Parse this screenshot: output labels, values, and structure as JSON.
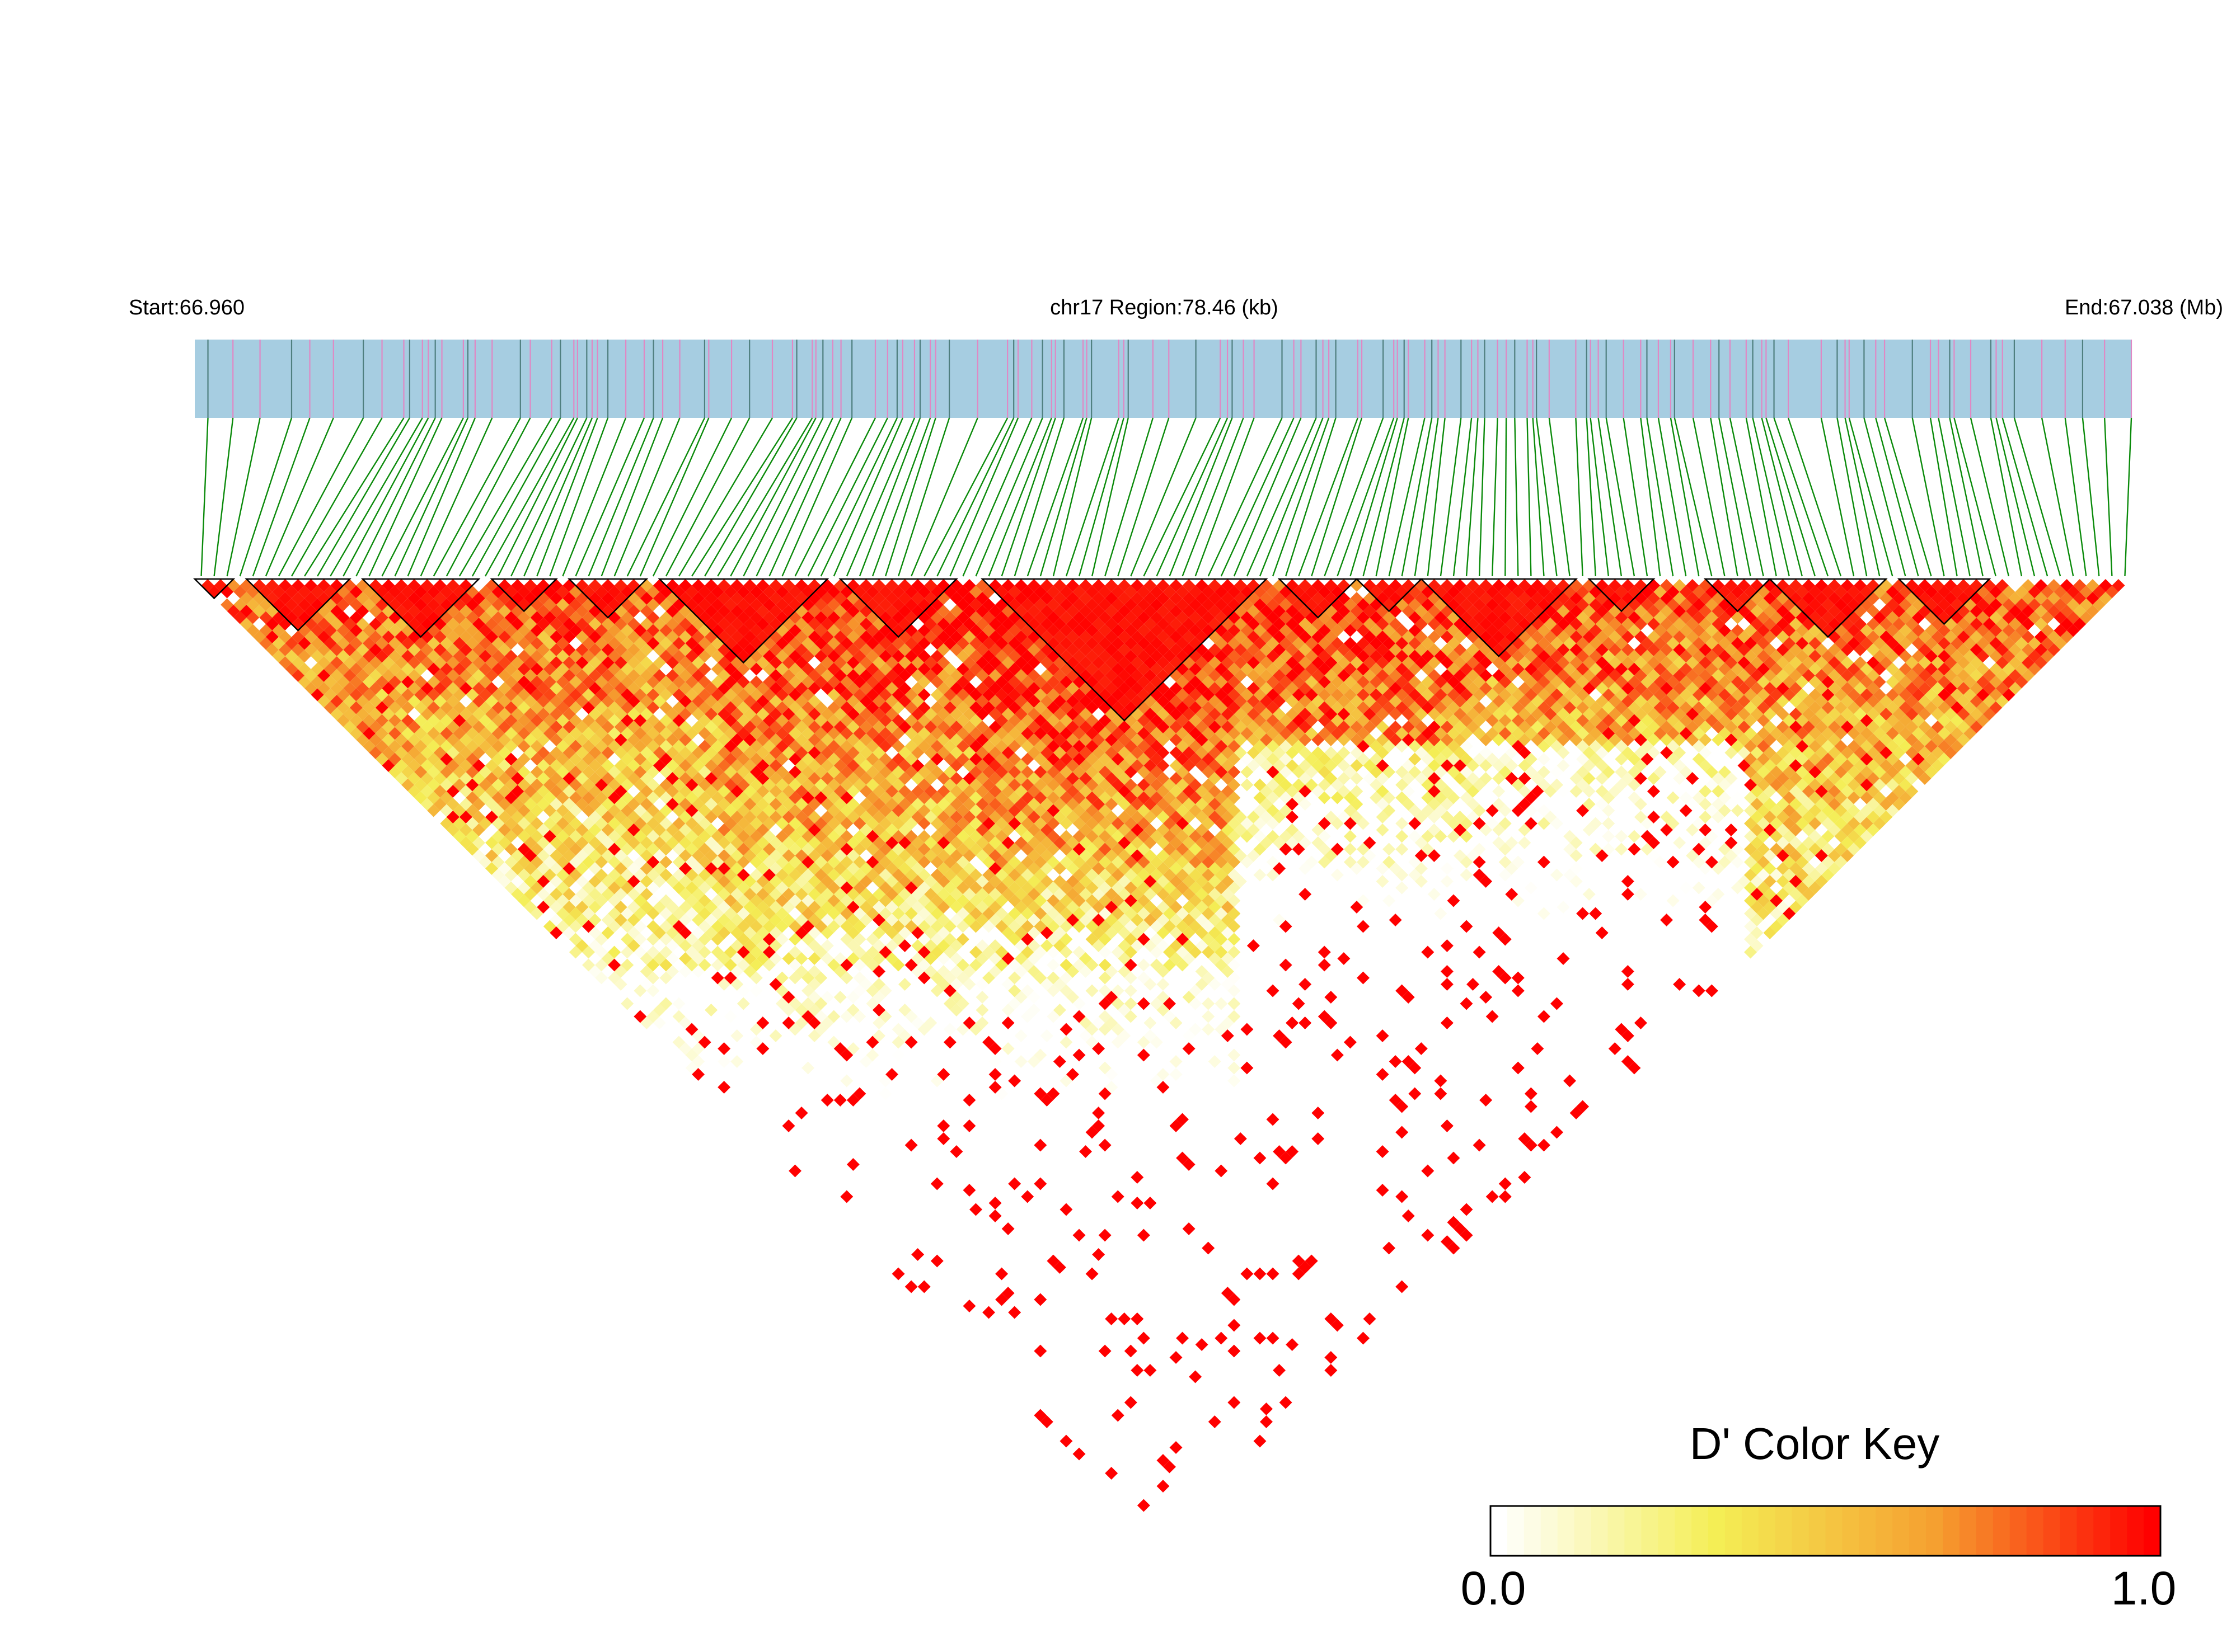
{
  "chart_data": {
    "type": "heatmap",
    "subtype": "linkage-disequilibrium-triangle",
    "metric": "D'",
    "start_label": "Start:66.960",
    "region_label": "chr17 Region:78.46 (kb)",
    "end_label": "End:67.038 (Mb)",
    "chromosome": "chr17",
    "start_mb": 66.96,
    "end_mb": 67.038,
    "region_kb": 78.46,
    "snp_count": 150,
    "color_key": {
      "title": "D' Color Key",
      "min_label": "0.0",
      "max_label": "1.0",
      "min": 0.0,
      "max": 1.0,
      "stops": [
        "#ffffff",
        "#f4ee55",
        "#f5a030",
        "#ff0000"
      ]
    },
    "colors": {
      "track_background": "#a6cde1",
      "snp_mark_a": "#e088c4",
      "snp_mark_b": "#4f7f7f",
      "connector": "#0a8a0a",
      "block_outline": "#000000"
    },
    "ld_blocks_snp_ranges": [
      [
        1,
        3
      ],
      [
        5,
        12
      ],
      [
        14,
        22
      ],
      [
        24,
        28
      ],
      [
        30,
        35
      ],
      [
        37,
        49
      ],
      [
        51,
        59
      ],
      [
        62,
        83
      ],
      [
        85,
        90
      ],
      [
        91,
        95
      ],
      [
        96,
        107
      ],
      [
        109,
        113
      ],
      [
        118,
        122
      ],
      [
        123,
        131
      ],
      [
        133,
        139
      ]
    ]
  }
}
